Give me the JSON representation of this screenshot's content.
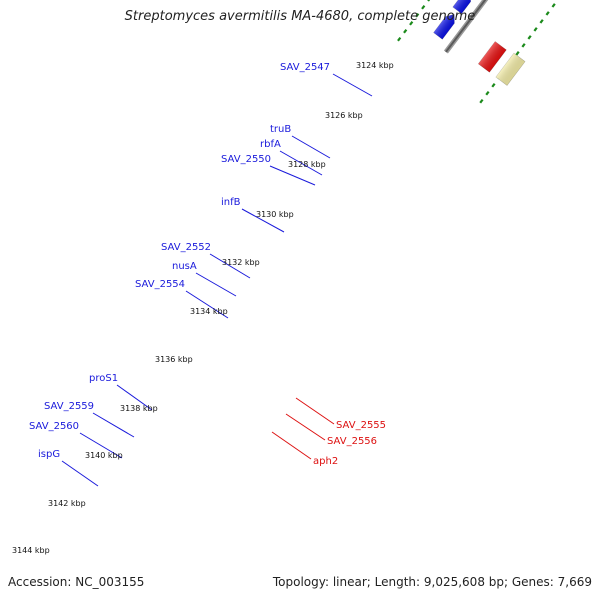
{
  "title": "Streptomyces avermitilis MA-4680, complete genome",
  "footer": {
    "accession": "Accession: NC_003155",
    "stats": "Topology: linear; Length: 9,025,608 bp; Genes: 7,669"
  },
  "ticks": [
    "3124 kbp",
    "3126 kbp",
    "3128 kbp",
    "3130 kbp",
    "3132 kbp",
    "3134 kbp",
    "3136 kbp",
    "3138 kbp",
    "3140 kbp",
    "3142 kbp",
    "3144 kbp"
  ],
  "gene_labels": [
    {
      "text": "SAV_2547",
      "color": "#1a1adb"
    },
    {
      "text": "truB",
      "color": "#1a1adb"
    },
    {
      "text": "rbfA",
      "color": "#1a1adb"
    },
    {
      "text": "SAV_2550",
      "color": "#1a1adb"
    },
    {
      "text": "infB",
      "color": "#1a1adb"
    },
    {
      "text": "SAV_2552",
      "color": "#1a1adb"
    },
    {
      "text": "nusA",
      "color": "#1a1adb"
    },
    {
      "text": "SAV_2554",
      "color": "#1a1adb"
    },
    {
      "text": "proS1",
      "color": "#1a1adb"
    },
    {
      "text": "SAV_2559",
      "color": "#1a1adb"
    },
    {
      "text": "SAV_2560",
      "color": "#1a1adb"
    },
    {
      "text": "ispG",
      "color": "#1a1adb"
    },
    {
      "text": "SAV_2555",
      "color": "#dd1111"
    },
    {
      "text": "SAV_2556",
      "color": "#dd1111"
    },
    {
      "text": "aph2",
      "color": "#dd1111"
    }
  ],
  "colors": {
    "forward_cds": "#0a10e6",
    "reverse_cds": "#e80f0f",
    "trna_pink": "#ee8a8a",
    "orange": "#f59a0c",
    "gray": "#666666",
    "light_gray": "#c8c8c8",
    "purple": "#7a6ad8",
    "olive": "#6b8b2a",
    "yellow": "#f3eca6",
    "green_dots": "#1b8a1b"
  }
}
